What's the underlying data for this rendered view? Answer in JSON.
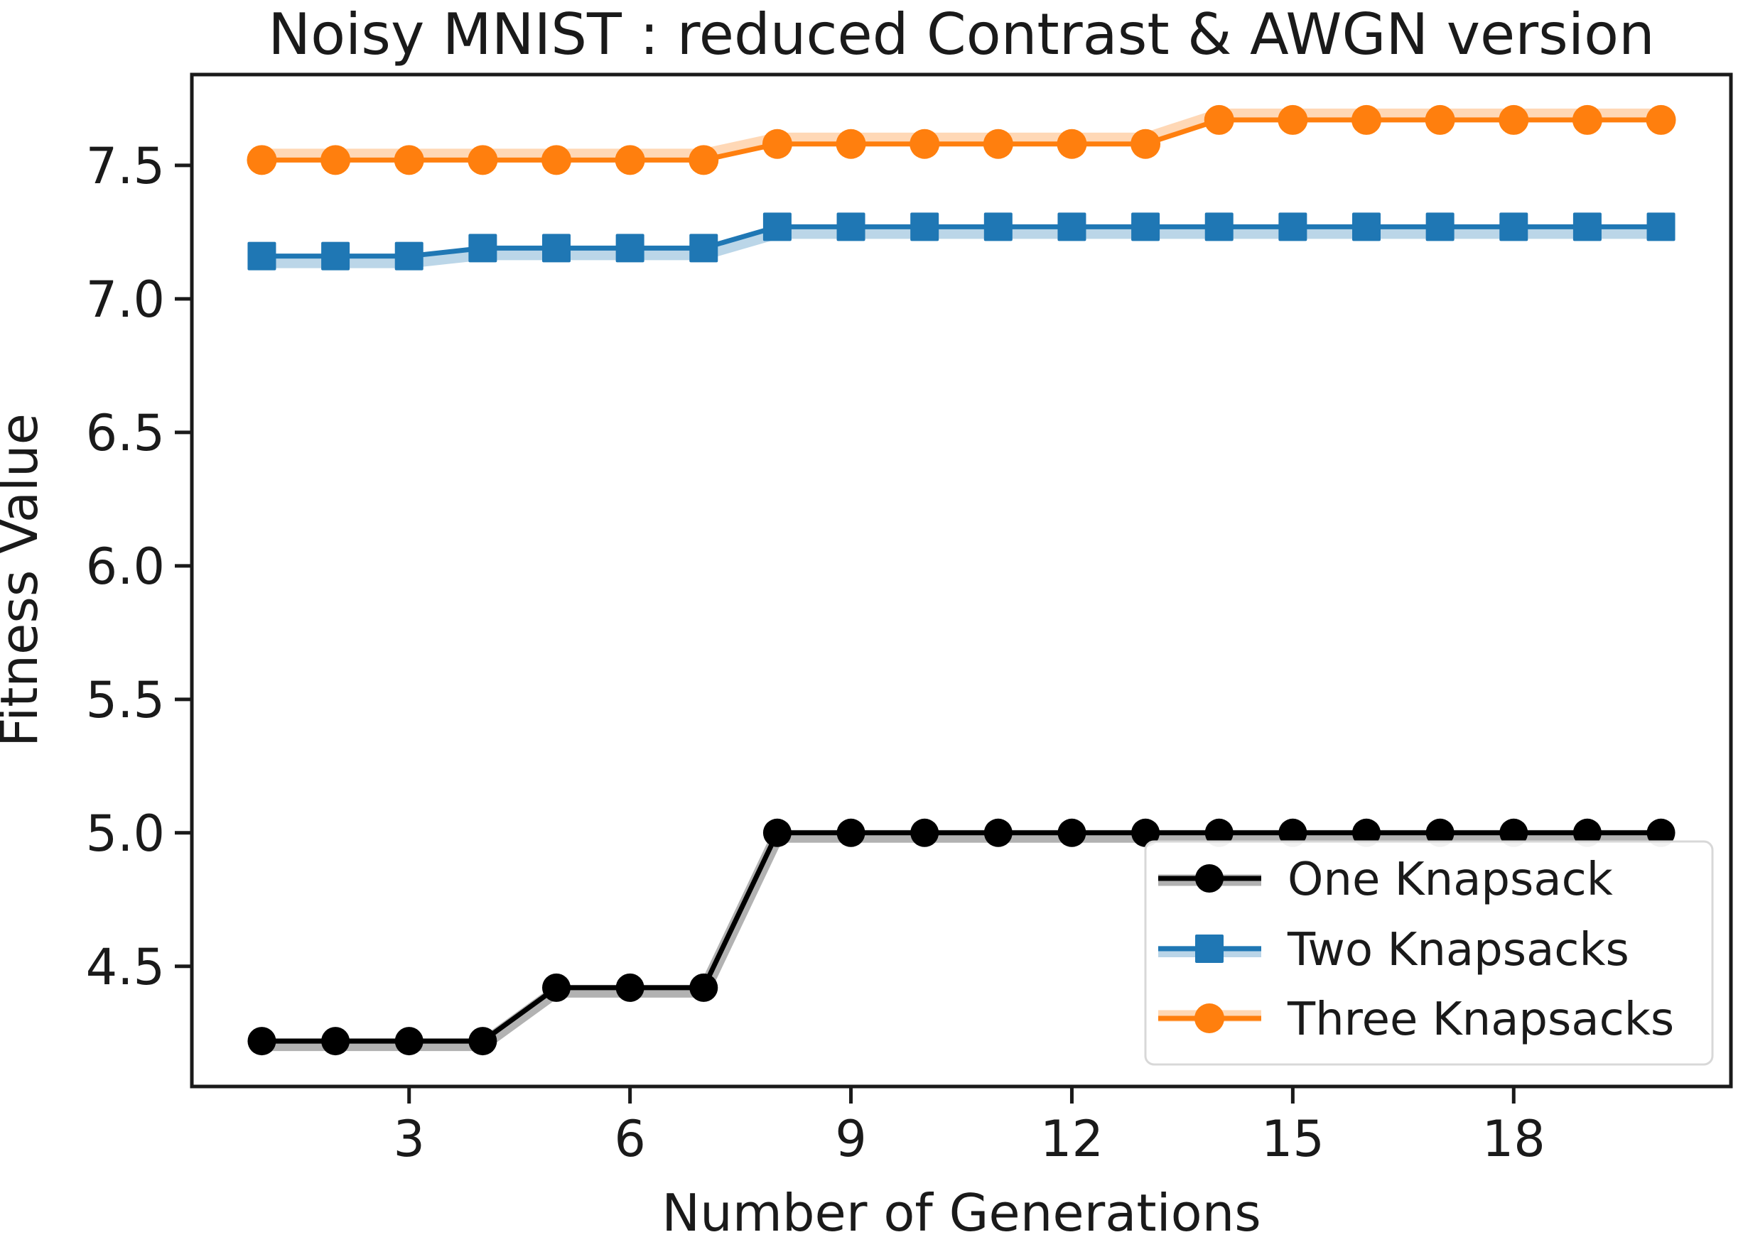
{
  "chart_data": {
    "type": "line",
    "title": "Noisy MNIST : reduced Contrast & AWGN version",
    "xlabel": "Number of Generations",
    "ylabel": "Fitness Value",
    "xlim": [
      0.05,
      20.95
    ],
    "ylim": [
      4.05,
      7.84
    ],
    "grid": false,
    "legend_position": "lower right",
    "xticks": [
      3,
      6,
      9,
      12,
      15,
      18
    ],
    "x_tick_labels": [
      "3",
      "6",
      "9",
      "12",
      "15",
      "18"
    ],
    "yticks": [
      4.5,
      5.0,
      5.5,
      6.0,
      6.5,
      7.0,
      7.5
    ],
    "y_tick_labels": [
      "4.5",
      "5.0",
      "5.5",
      "6.0",
      "6.5",
      "7.0",
      "7.5"
    ],
    "x": [
      1,
      2,
      3,
      4,
      5,
      6,
      7,
      8,
      9,
      10,
      11,
      12,
      13,
      14,
      15,
      16,
      17,
      18,
      19,
      20
    ],
    "series": [
      {
        "name": "One Knapsack",
        "color": "#000000",
        "marker": "circle",
        "values": [
          4.22,
          4.22,
          4.22,
          4.22,
          4.42,
          4.42,
          4.42,
          5.0,
          5.0,
          5.0,
          5.0,
          5.0,
          5.0,
          5.0,
          5.0,
          5.0,
          5.0,
          5.0,
          5.0,
          5.0
        ]
      },
      {
        "name": "Two Knapsacks",
        "color": "#1f77b4",
        "marker": "square",
        "values": [
          7.16,
          7.16,
          7.16,
          7.19,
          7.19,
          7.19,
          7.19,
          7.27,
          7.27,
          7.27,
          7.27,
          7.27,
          7.27,
          7.27,
          7.27,
          7.27,
          7.27,
          7.27,
          7.27,
          7.27
        ]
      },
      {
        "name": "Three Knapsacks",
        "color": "#ff7f0e",
        "marker": "circle",
        "values": [
          7.52,
          7.52,
          7.52,
          7.52,
          7.52,
          7.52,
          7.52,
          7.58,
          7.58,
          7.58,
          7.58,
          7.58,
          7.58,
          7.67,
          7.67,
          7.67,
          7.67,
          7.67,
          7.67,
          7.67
        ]
      }
    ],
    "legend_labels": [
      "One Knapsack",
      "Two Knapsacks",
      "Three Knapsacks"
    ],
    "axis_color": "#1a1a1a",
    "legend_border_color": "#d8d8d8",
    "background_color": "#ffffff"
  }
}
